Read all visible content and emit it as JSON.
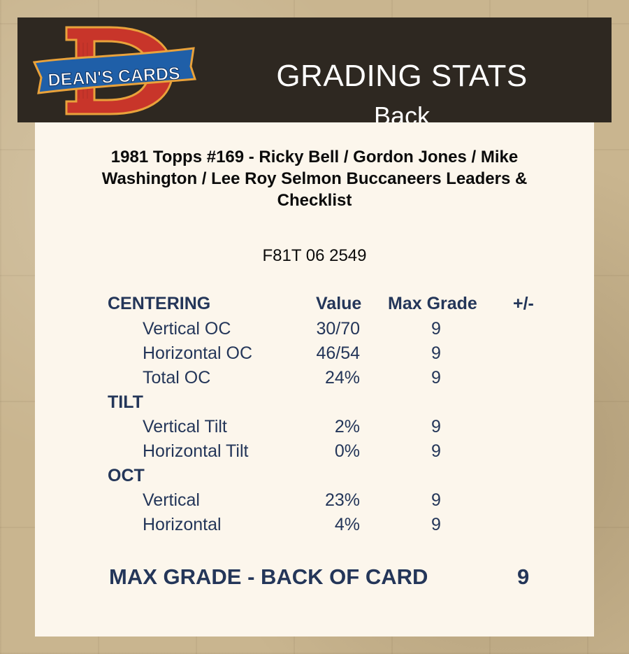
{
  "header": {
    "logo_text": "DEAN'S CARDS",
    "logo_letter": "D",
    "title": "GRADING STATS",
    "subtitle": "Back"
  },
  "card": {
    "title": "1981 Topps #169  -  Ricky Bell / Gordon Jones / Mike Washington / Lee Roy Selmon Buccaneers Leaders & Checklist",
    "cert": "F81T 06 2549"
  },
  "table": {
    "columns": {
      "value": "Value",
      "max_grade": "Max Grade",
      "plus_minus": "+/-"
    },
    "sections": [
      {
        "name": "CENTERING",
        "rows": [
          {
            "label": "Vertical OC",
            "value": "30/70",
            "max": "9"
          },
          {
            "label": "Horizontal OC",
            "value": "46/54",
            "max": "9"
          },
          {
            "label": "Total OC",
            "value": "24%",
            "max": "9"
          }
        ]
      },
      {
        "name": "TILT",
        "rows": [
          {
            "label": "Vertical Tilt",
            "value": "2%",
            "max": "9"
          },
          {
            "label": "Horizontal Tilt",
            "value": "0%",
            "max": "9"
          }
        ]
      },
      {
        "name": "OCT",
        "rows": [
          {
            "label": "Vertical",
            "value": "23%",
            "max": "9"
          },
          {
            "label": "Horizontal",
            "value": "4%",
            "max": "9"
          }
        ]
      }
    ]
  },
  "summary": {
    "label": "MAX GRADE - BACK OF CARD",
    "value": "9"
  },
  "colors": {
    "navy": "#243659",
    "header_bg": "#2e2821",
    "logo_red": "#c8352a",
    "logo_blue": "#1f5fa8"
  }
}
